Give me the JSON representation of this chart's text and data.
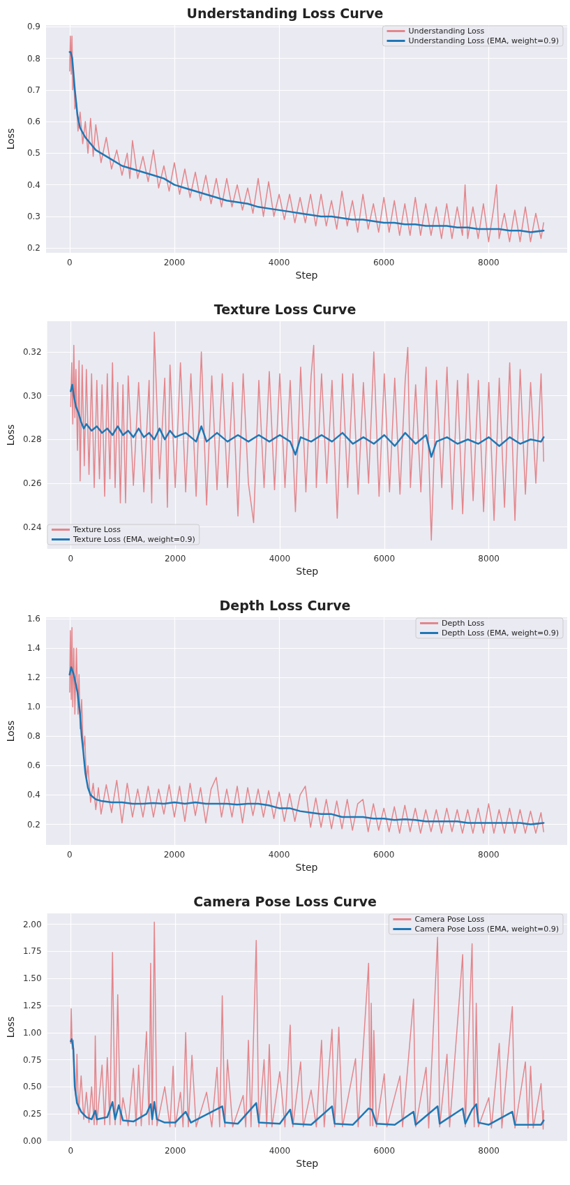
{
  "chart_data": [
    {
      "type": "line",
      "title": "Understanding Loss Curve",
      "xlabel": "Step",
      "ylabel": "Loss",
      "xlim": [
        -450,
        9500
      ],
      "xticks": [
        0,
        2000,
        4000,
        6000,
        8000
      ],
      "ylim": [
        0.185,
        0.905
      ],
      "yticks": [
        0.2,
        0.3,
        0.4,
        0.5,
        0.6,
        0.7,
        0.8,
        0.9
      ],
      "grid": true,
      "legend": "top right",
      "marker": "none",
      "line_style": "solid",
      "series": [
        {
          "name": "Understanding Loss",
          "color": "#e3868b",
          "x": [
            0,
            15,
            30,
            45,
            60,
            80,
            100,
            130,
            160,
            200,
            250,
            300,
            350,
            400,
            450,
            500,
            600,
            700,
            800,
            900,
            1000,
            1100,
            1150,
            1200,
            1300,
            1400,
            1500,
            1600,
            1700,
            1800,
            1900,
            2000,
            2100,
            2200,
            2300,
            2400,
            2500,
            2600,
            2700,
            2800,
            2900,
            3000,
            3100,
            3200,
            3300,
            3400,
            3500,
            3600,
            3700,
            3800,
            3900,
            4000,
            4100,
            4200,
            4300,
            4400,
            4500,
            4600,
            4700,
            4800,
            4900,
            5000,
            5100,
            5200,
            5300,
            5400,
            5500,
            5600,
            5700,
            5800,
            5900,
            6000,
            6100,
            6200,
            6300,
            6400,
            6500,
            6600,
            6700,
            6800,
            6900,
            7000,
            7100,
            7200,
            7300,
            7400,
            7500,
            7550,
            7600,
            7700,
            7800,
            7900,
            8000,
            8100,
            8150,
            8200,
            8300,
            8400,
            8500,
            8600,
            8700,
            8800,
            8900,
            9000,
            9050
          ],
          "values": [
            0.76,
            0.87,
            0.75,
            0.87,
            0.7,
            0.74,
            0.64,
            0.66,
            0.57,
            0.63,
            0.53,
            0.6,
            0.5,
            0.61,
            0.49,
            0.59,
            0.47,
            0.55,
            0.45,
            0.51,
            0.43,
            0.5,
            0.42,
            0.54,
            0.42,
            0.49,
            0.41,
            0.51,
            0.39,
            0.46,
            0.38,
            0.47,
            0.37,
            0.45,
            0.36,
            0.44,
            0.35,
            0.43,
            0.34,
            0.42,
            0.33,
            0.42,
            0.33,
            0.4,
            0.32,
            0.39,
            0.31,
            0.42,
            0.3,
            0.41,
            0.3,
            0.37,
            0.29,
            0.37,
            0.28,
            0.36,
            0.28,
            0.37,
            0.27,
            0.37,
            0.27,
            0.35,
            0.26,
            0.38,
            0.27,
            0.35,
            0.25,
            0.37,
            0.26,
            0.34,
            0.25,
            0.36,
            0.25,
            0.35,
            0.24,
            0.34,
            0.24,
            0.36,
            0.24,
            0.34,
            0.24,
            0.33,
            0.23,
            0.34,
            0.23,
            0.33,
            0.24,
            0.4,
            0.23,
            0.33,
            0.23,
            0.34,
            0.22,
            0.33,
            0.4,
            0.23,
            0.31,
            0.22,
            0.32,
            0.22,
            0.33,
            0.22,
            0.31,
            0.23,
            0.28
          ]
        },
        {
          "name": "Understanding Loss (EMA, weight=0.9)",
          "color": "#1f77b4",
          "x": [
            0,
            20,
            50,
            100,
            150,
            200,
            300,
            400,
            500,
            600,
            800,
            1000,
            1200,
            1400,
            1600,
            1800,
            2000,
            2200,
            2400,
            2600,
            2800,
            3000,
            3200,
            3400,
            3600,
            3800,
            4000,
            4200,
            4400,
            4600,
            4800,
            5000,
            5200,
            5400,
            5600,
            5800,
            6000,
            6200,
            6400,
            6600,
            6800,
            7000,
            7200,
            7400,
            7600,
            7800,
            8000,
            8200,
            8400,
            8600,
            8800,
            9050
          ],
          "values": [
            0.82,
            0.82,
            0.8,
            0.7,
            0.62,
            0.58,
            0.55,
            0.53,
            0.51,
            0.5,
            0.48,
            0.46,
            0.45,
            0.44,
            0.43,
            0.42,
            0.4,
            0.39,
            0.38,
            0.37,
            0.36,
            0.35,
            0.345,
            0.34,
            0.33,
            0.325,
            0.32,
            0.315,
            0.31,
            0.305,
            0.3,
            0.3,
            0.295,
            0.29,
            0.29,
            0.285,
            0.28,
            0.28,
            0.275,
            0.275,
            0.27,
            0.27,
            0.27,
            0.265,
            0.265,
            0.26,
            0.26,
            0.26,
            0.255,
            0.255,
            0.25,
            0.255
          ]
        }
      ]
    },
    {
      "type": "line",
      "title": "Texture Loss Curve",
      "xlabel": "Step",
      "ylabel": "Loss",
      "xlim": [
        -450,
        9500
      ],
      "xticks": [
        0,
        2000,
        4000,
        6000,
        8000
      ],
      "ylim": [
        0.23,
        0.334
      ],
      "yticks": [
        0.24,
        0.26,
        0.28,
        {
          "value": 0.3,
          "label": "0.30"
        },
        0.32
      ],
      "grid": true,
      "legend": "bottom left",
      "marker": "none",
      "line_style": "solid",
      "series": [
        {
          "name": "Texture Loss",
          "color": "#e3868b",
          "x": [
            0,
            20,
            40,
            60,
            80,
            100,
            130,
            160,
            180,
            220,
            260,
            300,
            350,
            400,
            450,
            500,
            550,
            600,
            650,
            700,
            750,
            800,
            850,
            900,
            950,
            1000,
            1050,
            1100,
            1200,
            1300,
            1400,
            1500,
            1550,
            1600,
            1700,
            1800,
            1850,
            1900,
            2000,
            2100,
            2200,
            2300,
            2400,
            2500,
            2600,
            2700,
            2800,
            2900,
            3000,
            3100,
            3200,
            3300,
            3400,
            3500,
            3600,
            3700,
            3800,
            3900,
            4000,
            4100,
            4200,
            4300,
            4400,
            4500,
            4600,
            4650,
            4700,
            4800,
            4900,
            5000,
            5100,
            5200,
            5300,
            5400,
            5500,
            5600,
            5700,
            5800,
            5900,
            6000,
            6100,
            6200,
            6300,
            6400,
            6450,
            6500,
            6600,
            6700,
            6800,
            6900,
            7000,
            7100,
            7200,
            7300,
            7400,
            7500,
            7600,
            7700,
            7800,
            7900,
            8000,
            8100,
            8200,
            8300,
            8400,
            8500,
            8600,
            8700,
            8800,
            8900,
            9000,
            9050
          ],
          "values": [
            0.295,
            0.315,
            0.287,
            0.323,
            0.29,
            0.312,
            0.275,
            0.316,
            0.261,
            0.314,
            0.268,
            0.312,
            0.264,
            0.31,
            0.258,
            0.307,
            0.262,
            0.305,
            0.254,
            0.31,
            0.262,
            0.315,
            0.258,
            0.306,
            0.251,
            0.305,
            0.251,
            0.309,
            0.259,
            0.306,
            0.256,
            0.307,
            0.251,
            0.329,
            0.262,
            0.308,
            0.249,
            0.314,
            0.258,
            0.315,
            0.256,
            0.31,
            0.254,
            0.32,
            0.25,
            0.309,
            0.257,
            0.31,
            0.258,
            0.306,
            0.245,
            0.31,
            0.26,
            0.242,
            0.307,
            0.258,
            0.311,
            0.257,
            0.31,
            0.258,
            0.307,
            0.247,
            0.313,
            0.256,
            0.309,
            0.323,
            0.258,
            0.31,
            0.26,
            0.307,
            0.244,
            0.31,
            0.258,
            0.31,
            0.255,
            0.306,
            0.26,
            0.32,
            0.254,
            0.31,
            0.256,
            0.308,
            0.255,
            0.307,
            0.322,
            0.258,
            0.305,
            0.256,
            0.313,
            0.234,
            0.307,
            0.258,
            0.313,
            0.248,
            0.307,
            0.246,
            0.31,
            0.252,
            0.307,
            0.247,
            0.306,
            0.243,
            0.308,
            0.249,
            0.315,
            0.243,
            0.312,
            0.255,
            0.306,
            0.26,
            0.31,
            0.27
          ]
        },
        {
          "name": "Texture Loss (EMA, weight=0.9)",
          "color": "#1f77b4",
          "x": [
            0,
            30,
            60,
            100,
            150,
            200,
            250,
            300,
            400,
            500,
            600,
            700,
            800,
            900,
            1000,
            1100,
            1200,
            1300,
            1400,
            1500,
            1600,
            1700,
            1800,
            1900,
            2000,
            2200,
            2400,
            2500,
            2600,
            2800,
            3000,
            3200,
            3400,
            3600,
            3800,
            4000,
            4200,
            4300,
            4400,
            4600,
            4800,
            5000,
            5200,
            5400,
            5600,
            5800,
            6000,
            6200,
            6400,
            6600,
            6800,
            6900,
            7000,
            7200,
            7400,
            7600,
            7800,
            8000,
            8200,
            8400,
            8600,
            8800,
            9000,
            9050
          ],
          "values": [
            0.302,
            0.305,
            0.3,
            0.295,
            0.292,
            0.288,
            0.285,
            0.287,
            0.284,
            0.286,
            0.283,
            0.285,
            0.282,
            0.286,
            0.282,
            0.284,
            0.281,
            0.285,
            0.281,
            0.283,
            0.28,
            0.285,
            0.28,
            0.284,
            0.281,
            0.283,
            0.279,
            0.286,
            0.279,
            0.283,
            0.279,
            0.282,
            0.279,
            0.282,
            0.279,
            0.282,
            0.279,
            0.273,
            0.281,
            0.279,
            0.282,
            0.279,
            0.283,
            0.278,
            0.281,
            0.278,
            0.282,
            0.277,
            0.283,
            0.278,
            0.282,
            0.272,
            0.279,
            0.281,
            0.278,
            0.28,
            0.278,
            0.281,
            0.277,
            0.281,
            0.278,
            0.28,
            0.279,
            0.281
          ]
        }
      ]
    },
    {
      "type": "line",
      "title": "Depth Loss Curve",
      "xlabel": "Step",
      "ylabel": "Loss",
      "xlim": [
        -450,
        9500
      ],
      "xticks": [
        0,
        2000,
        4000,
        6000,
        8000
      ],
      "ylim": [
        0.06,
        1.61
      ],
      "yticks": [
        0.2,
        0.4,
        0.6,
        0.8,
        {
          "value": 1,
          "label": "1.0"
        },
        1.2,
        1.4,
        1.6
      ],
      "grid": true,
      "legend": "top right",
      "marker": "none",
      "line_style": "solid",
      "series": [
        {
          "name": "Depth Loss",
          "color": "#e3868b",
          "x": [
            0,
            15,
            30,
            45,
            60,
            80,
            100,
            130,
            160,
            180,
            200,
            230,
            260,
            290,
            320,
            350,
            400,
            450,
            500,
            550,
            600,
            700,
            800,
            900,
            1000,
            1100,
            1200,
            1300,
            1400,
            1500,
            1600,
            1700,
            1800,
            1900,
            2000,
            2100,
            2200,
            2300,
            2400,
            2500,
            2600,
            2700,
            2800,
            2900,
            3000,
            3100,
            3200,
            3300,
            3400,
            3500,
            3600,
            3700,
            3800,
            3900,
            4000,
            4100,
            4200,
            4300,
            4400,
            4500,
            4600,
            4700,
            4800,
            4900,
            5000,
            5100,
            5200,
            5300,
            5400,
            5500,
            5600,
            5700,
            5800,
            5900,
            6000,
            6100,
            6200,
            6300,
            6400,
            6500,
            6600,
            6700,
            6800,
            6900,
            7000,
            7100,
            7200,
            7300,
            7400,
            7500,
            7600,
            7700,
            7800,
            7900,
            8000,
            8100,
            8200,
            8300,
            8400,
            8500,
            8600,
            8700,
            8800,
            8900,
            9000,
            9050
          ],
          "values": [
            1.1,
            1.52,
            1.05,
            1.54,
            1.0,
            1.4,
            0.95,
            1.4,
            0.95,
            1.22,
            0.85,
            1.05,
            0.7,
            0.8,
            0.5,
            0.6,
            0.35,
            0.48,
            0.3,
            0.45,
            0.27,
            0.47,
            0.28,
            0.5,
            0.21,
            0.48,
            0.25,
            0.44,
            0.25,
            0.46,
            0.25,
            0.44,
            0.27,
            0.47,
            0.25,
            0.46,
            0.22,
            0.48,
            0.26,
            0.45,
            0.21,
            0.44,
            0.52,
            0.25,
            0.44,
            0.25,
            0.46,
            0.21,
            0.45,
            0.26,
            0.44,
            0.25,
            0.43,
            0.24,
            0.42,
            0.22,
            0.41,
            0.22,
            0.4,
            0.46,
            0.18,
            0.38,
            0.18,
            0.37,
            0.17,
            0.36,
            0.17,
            0.37,
            0.16,
            0.34,
            0.37,
            0.15,
            0.34,
            0.16,
            0.31,
            0.15,
            0.32,
            0.14,
            0.33,
            0.15,
            0.31,
            0.14,
            0.3,
            0.15,
            0.3,
            0.14,
            0.31,
            0.15,
            0.3,
            0.14,
            0.3,
            0.14,
            0.31,
            0.14,
            0.34,
            0.14,
            0.3,
            0.14,
            0.31,
            0.14,
            0.3,
            0.14,
            0.29,
            0.14,
            0.28,
            0.15
          ]
        },
        {
          "name": "Depth Loss (EMA, weight=0.9)",
          "color": "#1f77b4",
          "x": [
            0,
            30,
            50,
            80,
            120,
            150,
            200,
            230,
            260,
            300,
            350,
            400,
            500,
            600,
            800,
            1000,
            1200,
            1400,
            1600,
            1800,
            2000,
            2200,
            2400,
            2600,
            2800,
            3000,
            3200,
            3400,
            3600,
            3800,
            4000,
            4200,
            4400,
            4600,
            4800,
            5000,
            5200,
            5400,
            5600,
            5800,
            6000,
            6200,
            6400,
            6600,
            6800,
            7000,
            7200,
            7400,
            7600,
            7800,
            8000,
            8200,
            8400,
            8600,
            8800,
            9050
          ],
          "values": [
            1.22,
            1.27,
            1.25,
            1.22,
            1.15,
            1.1,
            0.95,
            0.8,
            0.7,
            0.55,
            0.45,
            0.4,
            0.37,
            0.36,
            0.35,
            0.35,
            0.34,
            0.34,
            0.345,
            0.34,
            0.35,
            0.34,
            0.35,
            0.34,
            0.34,
            0.34,
            0.335,
            0.34,
            0.34,
            0.33,
            0.31,
            0.31,
            0.29,
            0.28,
            0.27,
            0.27,
            0.25,
            0.25,
            0.25,
            0.24,
            0.24,
            0.23,
            0.235,
            0.23,
            0.22,
            0.22,
            0.22,
            0.22,
            0.21,
            0.21,
            0.21,
            0.21,
            0.21,
            0.21,
            0.2,
            0.21
          ]
        }
      ]
    },
    {
      "type": "line",
      "title": "Camera Pose Loss Curve",
      "xlabel": "Step",
      "ylabel": "Loss",
      "xlim": [
        -450,
        9500
      ],
      "xticks": [
        0,
        2000,
        4000,
        6000,
        8000
      ],
      "ylim": [
        0,
        2.1
      ],
      "yticks": [
        {
          "value": 0,
          "label": "0.00"
        },
        0.25,
        {
          "value": 0.5,
          "label": "0.50"
        },
        0.75,
        {
          "value": 1,
          "label": "1.00"
        },
        1.25,
        {
          "value": 1.5,
          "label": "1.50"
        },
        1.75,
        {
          "value": 2,
          "label": "2.00"
        }
      ],
      "grid": true,
      "legend": "top right",
      "marker": "none",
      "line_style": "solid",
      "series": [
        {
          "name": "Camera Pose Loss",
          "color": "#e3868b",
          "x": [
            0,
            10,
            30,
            50,
            70,
            100,
            120,
            150,
            200,
            250,
            300,
            350,
            400,
            450,
            470,
            500,
            600,
            650,
            700,
            750,
            800,
            850,
            900,
            950,
            1000,
            1100,
            1200,
            1250,
            1300,
            1350,
            1450,
            1500,
            1530,
            1560,
            1600,
            1650,
            1800,
            1900,
            1960,
            2000,
            2100,
            2150,
            2200,
            2250,
            2320,
            2400,
            2600,
            2700,
            2800,
            2850,
            2900,
            2950,
            3000,
            3100,
            3300,
            3350,
            3400,
            3450,
            3550,
            3600,
            3700,
            3750,
            3800,
            3850,
            4000,
            4100,
            4200,
            4250,
            4400,
            4450,
            4600,
            4700,
            4800,
            4850,
            5000,
            5050,
            5130,
            5200,
            5450,
            5500,
            5700,
            5730,
            5750,
            5780,
            5800,
            5850,
            6000,
            6050,
            6300,
            6350,
            6560,
            6600,
            6800,
            6850,
            7020,
            7060,
            7200,
            7250,
            7500,
            7550,
            7680,
            7720,
            7760,
            7800,
            8000,
            8050,
            8200,
            8250,
            8450,
            8500,
            8700,
            8750,
            8800,
            8850,
            9000,
            9040,
            9050
          ],
          "values": [
            0.9,
            1.22,
            0.85,
            0.93,
            0.5,
            0.4,
            0.8,
            0.25,
            0.6,
            0.2,
            0.45,
            0.17,
            0.5,
            0.15,
            0.97,
            0.15,
            0.7,
            0.15,
            0.77,
            0.15,
            1.74,
            0.15,
            1.35,
            0.15,
            0.4,
            0.14,
            0.67,
            0.14,
            0.7,
            0.14,
            1.01,
            0.15,
            1.64,
            0.15,
            2.02,
            0.14,
            0.5,
            0.13,
            0.69,
            0.13,
            0.45,
            0.13,
            1.0,
            0.13,
            0.79,
            0.13,
            0.45,
            0.13,
            0.68,
            0.13,
            1.34,
            0.13,
            0.75,
            0.13,
            0.42,
            0.13,
            0.93,
            0.13,
            1.85,
            0.13,
            0.75,
            0.13,
            0.89,
            0.13,
            0.64,
            0.13,
            1.07,
            0.13,
            0.73,
            0.13,
            0.47,
            0.13,
            0.93,
            0.13,
            1.03,
            0.13,
            1.05,
            0.13,
            0.76,
            0.13,
            1.64,
            0.14,
            1.27,
            0.14,
            1.02,
            0.13,
            0.62,
            0.13,
            0.6,
            0.13,
            1.31,
            0.13,
            0.68,
            0.12,
            1.88,
            0.13,
            0.8,
            0.13,
            1.72,
            0.13,
            1.82,
            0.13,
            1.27,
            0.13,
            0.4,
            0.12,
            0.9,
            0.12,
            1.24,
            0.12,
            0.73,
            0.12,
            0.69,
            0.12,
            0.53,
            0.11,
            0.28
          ]
        },
        {
          "name": "Camera Pose Loss (EMA, weight=0.9)",
          "color": "#1f77b4",
          "x": [
            0,
            20,
            50,
            80,
            120,
            200,
            300,
            400,
            470,
            500,
            700,
            800,
            850,
            920,
            1000,
            1200,
            1450,
            1530,
            1560,
            1600,
            1650,
            1800,
            2000,
            2200,
            2300,
            2900,
            2950,
            3200,
            3550,
            3600,
            4000,
            4200,
            4250,
            4600,
            5000,
            5050,
            5400,
            5700,
            5760,
            5850,
            6200,
            6560,
            6600,
            7020,
            7060,
            7500,
            7550,
            7680,
            7760,
            7800,
            8000,
            8450,
            8500,
            9000,
            9050
          ],
          "values": [
            0.92,
            0.94,
            0.85,
            0.5,
            0.35,
            0.27,
            0.22,
            0.2,
            0.28,
            0.2,
            0.22,
            0.36,
            0.2,
            0.33,
            0.19,
            0.18,
            0.25,
            0.34,
            0.2,
            0.36,
            0.2,
            0.17,
            0.17,
            0.27,
            0.17,
            0.32,
            0.17,
            0.16,
            0.35,
            0.17,
            0.16,
            0.29,
            0.16,
            0.15,
            0.32,
            0.16,
            0.15,
            0.3,
            0.29,
            0.16,
            0.15,
            0.27,
            0.15,
            0.32,
            0.16,
            0.3,
            0.16,
            0.29,
            0.34,
            0.17,
            0.15,
            0.27,
            0.15,
            0.15,
            0.19
          ]
        }
      ]
    }
  ]
}
